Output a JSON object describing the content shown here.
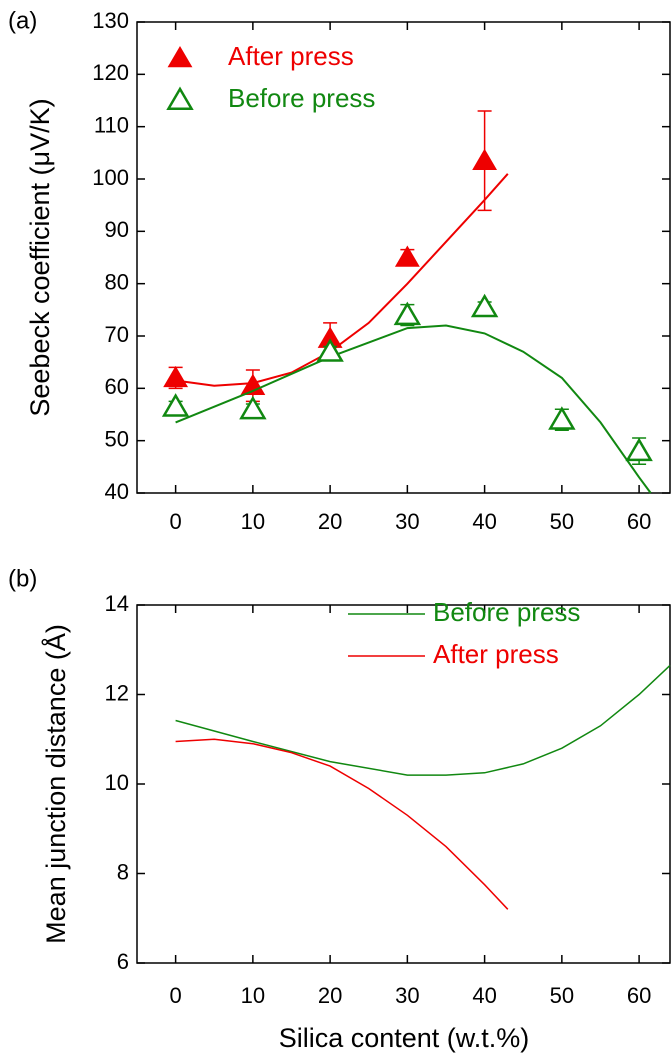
{
  "chart_data": [
    {
      "type": "scatter",
      "label": "(a)",
      "ylabel": "Seebeck coefficient (μV/K)",
      "xlim": [
        -5,
        64
      ],
      "xticks": [
        0,
        10,
        20,
        30,
        40,
        50,
        60
      ],
      "ylim": [
        40,
        130
      ],
      "yticks": [
        40,
        50,
        60,
        70,
        80,
        90,
        100,
        110,
        120,
        130
      ],
      "series": [
        {
          "name": "After press",
          "color": "#ee0000",
          "marker": "filled-triangle",
          "x": [
            0,
            10,
            20,
            30,
            40
          ],
          "values": [
            62,
            60.5,
            69.5,
            85,
            103.5
          ],
          "errors": [
            2,
            3,
            3,
            1.5,
            9.5
          ],
          "fit": {
            "x": [
              0,
              5,
              10,
              15,
              20,
              25,
              30,
              35,
              40,
              43
            ],
            "values": [
              61.5,
              60.5,
              61,
              63,
              67,
              72.5,
              80,
              88,
              96,
              101
            ]
          }
        },
        {
          "name": "Before press",
          "color": "#118811",
          "marker": "open-triangle",
          "x": [
            0,
            10,
            20,
            30,
            40,
            50,
            60
          ],
          "values": [
            56.5,
            56,
            67,
            74,
            75.5,
            54,
            48
          ],
          "errors": [
            1,
            1,
            1,
            2,
            1,
            2,
            2.5
          ],
          "fit": {
            "x": [
              0,
              10,
              20,
              30,
              35,
              40,
              45,
              50,
              55,
              60,
              61.5
            ],
            "values": [
              53.5,
              59.5,
              66,
              71.5,
              72,
              70.5,
              67,
              62,
              53.5,
              43,
              40
            ]
          }
        }
      ]
    },
    {
      "type": "line",
      "label": "(b)",
      "xlabel": "Silica content (w.t.%)",
      "ylabel": "Mean junction distance (Å)",
      "xlim": [
        -5,
        64
      ],
      "xticks": [
        0,
        10,
        20,
        30,
        40,
        50,
        60
      ],
      "ylim": [
        6,
        14
      ],
      "yticks": [
        6,
        8,
        10,
        12,
        14
      ],
      "series": [
        {
          "name": "Before press",
          "color": "#118811",
          "x": [
            0,
            10,
            20,
            30,
            35,
            40,
            45,
            50,
            55,
            60,
            64
          ],
          "values": [
            11.42,
            10.95,
            10.5,
            10.2,
            10.2,
            10.25,
            10.45,
            10.8,
            11.3,
            12.0,
            12.65
          ]
        },
        {
          "name": "After press",
          "color": "#ee0000",
          "x": [
            0,
            5,
            10,
            15,
            20,
            25,
            30,
            35,
            40,
            43
          ],
          "values": [
            10.95,
            11.0,
            10.9,
            10.7,
            10.4,
            9.9,
            9.3,
            8.6,
            7.75,
            7.2
          ]
        }
      ]
    }
  ]
}
